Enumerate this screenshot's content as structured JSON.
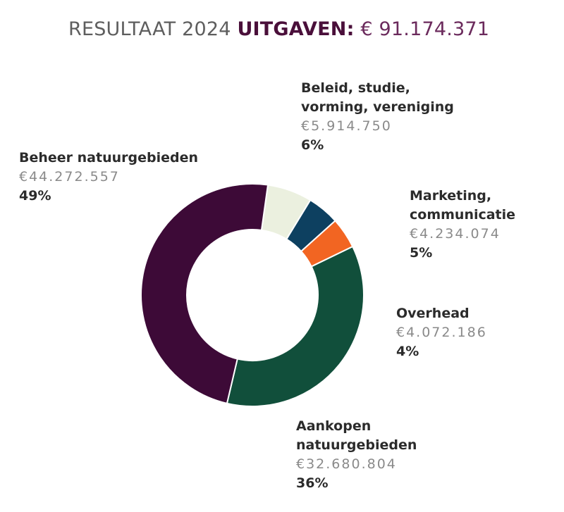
{
  "title": {
    "prefix": "RESULTAAT 2024",
    "bold": "UITGAVEN:",
    "amount": "€ 91.174.371"
  },
  "chart_data": {
    "type": "pie",
    "variant": "donut",
    "total": 91174371,
    "series": [
      {
        "label": "Beheer natuurgebieden",
        "label_lines": "Beheer natuurgebieden",
        "value": 44272557,
        "amount": "€44.272.557",
        "percent": "49%",
        "color": "#3d0a37"
      },
      {
        "label": "Beleid, studie, vorming, vereniging",
        "label_lines": "Beleid, studie,\nvorming, vereniging",
        "value": 5914750,
        "amount": "€5.914.750",
        "percent": "6%",
        "color": "#ebf0df"
      },
      {
        "label": "Marketing, communicatie",
        "label_lines": "Marketing,\ncommunicatie",
        "value": 4234074,
        "amount": "€4.234.074",
        "percent": "5%",
        "color": "#0d4060"
      },
      {
        "label": "Overhead",
        "label_lines": "Overhead",
        "value": 4072186,
        "amount": "€4.072.186",
        "percent": "4%",
        "color": "#f26522"
      },
      {
        "label": "Aankopen natuurgebieden",
        "label_lines": "Aankopen\nnatuurgebieden",
        "value": 32680804,
        "amount": "€32.680.804",
        "percent": "36%",
        "color": "#114f3b"
      }
    ]
  }
}
